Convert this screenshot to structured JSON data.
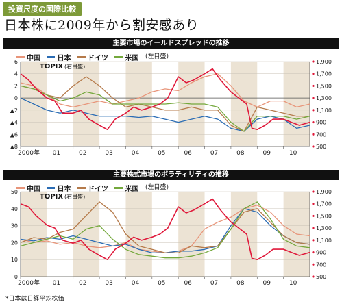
{
  "header": {
    "tag": "投資尺度の国際比較",
    "title": "日本株に2009年から割安感あり"
  },
  "footnote": "*日本は日経平均株価",
  "colors": {
    "china": "#e8957a",
    "japan": "#2a6cb4",
    "germany": "#b57a4a",
    "usa": "#74a83c",
    "topix": "#e0183a",
    "shade": "#ece3d4"
  },
  "legend": {
    "china": "中国",
    "japan": "日本",
    "germany": "ドイツ",
    "usa": "米国",
    "left_axis_note": "(左目盛)"
  },
  "chart_data": [
    {
      "type": "line",
      "title": "主要市場のイールドスプレッドの推移",
      "topix_label": "TOPIX",
      "topix_note": "(右目盛)",
      "x_tick_labels": [
        "2000年",
        "01",
        "02",
        "03",
        "04",
        "05",
        "06",
        "07",
        "08",
        "09",
        "10"
      ],
      "x_range": [
        2000,
        2011
      ],
      "left_axis": {
        "ylim": [
          -8,
          6
        ],
        "ticks": [
          6,
          4,
          2,
          0,
          -2,
          -4,
          -6,
          -8
        ],
        "tick_labels": [
          "6",
          "4",
          "2",
          "0",
          "▲2",
          "▲4",
          "▲6",
          "▲8"
        ]
      },
      "right_axis": {
        "ylim": [
          500,
          1900
        ],
        "ticks": [
          1900,
          1700,
          1500,
          1300,
          1100,
          900,
          700,
          500
        ],
        "tick_labels": [
          "1,900",
          "1,700",
          "1,500",
          "1,300",
          "1,100",
          "900",
          "700",
          "500"
        ]
      },
      "series": [
        {
          "name": "中国",
          "axis": "left",
          "x": [
            2000.0,
            2000.5,
            2001.0,
            2001.5,
            2002.0,
            2002.5,
            2003.0,
            2003.5,
            2004.0,
            2004.5,
            2005.0,
            2005.5,
            2006.0,
            2006.5,
            2007.0,
            2007.5,
            2008.0,
            2008.5,
            2009.0,
            2009.5,
            2010.0,
            2010.5,
            2011.0
          ],
          "y": [
            2.5,
            2.0,
            0.5,
            -1.0,
            -1.5,
            -1.0,
            -0.5,
            -1.0,
            -0.5,
            0.0,
            1.0,
            1.5,
            1.2,
            2.5,
            3.5,
            4.0,
            2.0,
            -0.5,
            -1.5,
            -0.5,
            -0.5,
            -1.5,
            -1.0
          ]
        },
        {
          "name": "日本",
          "axis": "left",
          "x": [
            2000.0,
            2000.5,
            2001.0,
            2001.5,
            2002.0,
            2002.5,
            2003.0,
            2003.5,
            2004.0,
            2004.5,
            2005.0,
            2005.5,
            2006.0,
            2006.5,
            2007.0,
            2007.5,
            2008.0,
            2008.5,
            2009.0,
            2009.5,
            2010.0,
            2010.5,
            2011.0
          ],
          "y": [
            0.0,
            -1.0,
            -2.0,
            -2.5,
            -2.0,
            -2.5,
            -3.0,
            -3.0,
            -3.0,
            -3.2,
            -3.0,
            -3.5,
            -4.0,
            -3.5,
            -3.0,
            -3.5,
            -5.0,
            -5.5,
            -3.5,
            -3.0,
            -3.5,
            -5.0,
            -4.5
          ]
        },
        {
          "name": "ドイツ",
          "axis": "left",
          "x": [
            2000.0,
            2000.5,
            2001.0,
            2001.5,
            2002.0,
            2002.5,
            2003.0,
            2003.5,
            2004.0,
            2004.5,
            2005.0,
            2005.5,
            2006.0,
            2006.5,
            2007.0,
            2007.5,
            2008.0,
            2008.5,
            2009.0,
            2009.5,
            2010.0,
            2010.5,
            2011.0
          ],
          "y": [
            2.0,
            1.5,
            0.5,
            0.0,
            2.0,
            3.5,
            2.0,
            0.0,
            -1.5,
            -1.0,
            -1.5,
            -2.0,
            -2.0,
            -1.5,
            -2.0,
            -2.0,
            -4.5,
            -5.5,
            -1.5,
            -2.0,
            -2.5,
            -3.0,
            -3.0
          ]
        },
        {
          "name": "米国",
          "axis": "left",
          "x": [
            2000.0,
            2000.5,
            2001.0,
            2001.5,
            2002.0,
            2002.5,
            2003.0,
            2003.5,
            2004.0,
            2004.5,
            2005.0,
            2005.5,
            2006.0,
            2006.5,
            2007.0,
            2007.5,
            2008.0,
            2008.5,
            2009.0,
            2009.5,
            2010.0,
            2010.5,
            2011.0
          ],
          "y": [
            2.0,
            1.5,
            0.5,
            -0.5,
            0.0,
            1.0,
            0.5,
            -1.0,
            -1.0,
            -1.0,
            -1.0,
            -1.0,
            -0.8,
            -1.0,
            -1.0,
            -1.5,
            -4.0,
            -5.5,
            -3.0,
            -3.0,
            -3.0,
            -3.5,
            -3.0
          ]
        },
        {
          "name": "TOPIX",
          "axis": "right",
          "x": [
            2000.0,
            2000.3,
            2000.6,
            2001.0,
            2001.3,
            2001.6,
            2002.0,
            2002.3,
            2002.6,
            2003.0,
            2003.3,
            2003.6,
            2004.0,
            2004.3,
            2004.6,
            2005.0,
            2005.3,
            2005.6,
            2006.0,
            2006.3,
            2006.6,
            2007.0,
            2007.3,
            2007.6,
            2008.0,
            2008.3,
            2008.6,
            2008.8,
            2009.0,
            2009.3,
            2009.6,
            2010.0,
            2010.3,
            2010.6,
            2011.0
          ],
          "y": [
            1700,
            1600,
            1450,
            1300,
            1250,
            1050,
            1050,
            1100,
            950,
            850,
            780,
            950,
            1050,
            1150,
            1100,
            1150,
            1200,
            1300,
            1650,
            1550,
            1600,
            1700,
            1780,
            1600,
            1400,
            1300,
            1200,
            800,
            780,
            850,
            950,
            950,
            900,
            850,
            900
          ]
        }
      ]
    },
    {
      "type": "line",
      "title": "主要株式市場のボラティリティの推移",
      "topix_label": "TOPIX",
      "topix_note": "(右目盛)",
      "x_tick_labels": [
        "2000年",
        "01",
        "02",
        "03",
        "04",
        "05",
        "06",
        "07",
        "08",
        "09",
        "10"
      ],
      "x_range": [
        2000,
        2011
      ],
      "left_axis": {
        "ylim": [
          0,
          50
        ],
        "ticks": [
          50,
          40,
          30,
          20,
          10,
          0
        ],
        "tick_labels": [
          "50",
          "40",
          "30",
          "20",
          "10",
          "0"
        ]
      },
      "right_axis": {
        "ylim": [
          500,
          1900
        ],
        "ticks": [
          1900,
          1700,
          1500,
          1300,
          1100,
          900,
          700,
          500
        ],
        "tick_labels": [
          "1,900",
          "1,700",
          "1,500",
          "1,300",
          "1,100",
          "900",
          "700",
          "500"
        ]
      },
      "series": [
        {
          "name": "中国",
          "axis": "left",
          "x": [
            2000.0,
            2000.5,
            2001.0,
            2001.5,
            2002.0,
            2002.5,
            2003.0,
            2003.5,
            2004.0,
            2004.5,
            2005.0,
            2005.5,
            2006.0,
            2006.5,
            2007.0,
            2007.5,
            2008.0,
            2008.5,
            2009.0,
            2009.5,
            2010.0,
            2010.5,
            2011.0
          ],
          "y": [
            22,
            20,
            21,
            19,
            20,
            18,
            17,
            18,
            20,
            16,
            15,
            14,
            15,
            18,
            28,
            32,
            35,
            40,
            42,
            38,
            30,
            25,
            24
          ]
        },
        {
          "name": "日本",
          "axis": "left",
          "x": [
            2000.0,
            2000.5,
            2001.0,
            2001.5,
            2002.0,
            2002.5,
            2003.0,
            2003.5,
            2004.0,
            2004.5,
            2005.0,
            2005.5,
            2006.0,
            2006.5,
            2007.0,
            2007.5,
            2008.0,
            2008.5,
            2009.0,
            2009.5,
            2010.0,
            2010.5,
            2011.0
          ],
          "y": [
            22,
            21,
            23,
            22,
            24,
            22,
            20,
            18,
            19,
            16,
            14,
            14,
            15,
            15,
            16,
            18,
            30,
            40,
            38,
            30,
            24,
            20,
            19
          ]
        },
        {
          "name": "ドイツ",
          "axis": "left",
          "x": [
            2000.0,
            2000.5,
            2001.0,
            2001.5,
            2002.0,
            2002.5,
            2003.0,
            2003.5,
            2004.0,
            2004.5,
            2005.0,
            2005.5,
            2006.0,
            2006.5,
            2007.0,
            2007.5,
            2008.0,
            2008.5,
            2009.0,
            2009.5,
            2010.0,
            2010.5,
            2011.0
          ],
          "y": [
            20,
            23,
            22,
            26,
            28,
            36,
            44,
            38,
            25,
            18,
            16,
            14,
            14,
            18,
            17,
            18,
            28,
            38,
            40,
            32,
            24,
            20,
            19
          ]
        },
        {
          "name": "米国",
          "axis": "left",
          "x": [
            2000.0,
            2000.5,
            2001.0,
            2001.5,
            2002.0,
            2002.5,
            2003.0,
            2003.5,
            2004.0,
            2004.5,
            2005.0,
            2005.5,
            2006.0,
            2006.5,
            2007.0,
            2007.5,
            2008.0,
            2008.5,
            2009.0,
            2009.5,
            2010.0,
            2010.5,
            2011.0
          ],
          "y": [
            18,
            20,
            22,
            24,
            22,
            28,
            30,
            22,
            16,
            13,
            12,
            11,
            11,
            12,
            14,
            17,
            28,
            40,
            44,
            34,
            22,
            18,
            17
          ]
        },
        {
          "name": "TOPIX",
          "axis": "right",
          "x": [
            2000.0,
            2000.3,
            2000.6,
            2001.0,
            2001.3,
            2001.6,
            2002.0,
            2002.3,
            2002.6,
            2003.0,
            2003.3,
            2003.6,
            2004.0,
            2004.3,
            2004.6,
            2005.0,
            2005.3,
            2005.6,
            2006.0,
            2006.3,
            2006.6,
            2007.0,
            2007.3,
            2007.6,
            2008.0,
            2008.3,
            2008.6,
            2008.8,
            2009.0,
            2009.3,
            2009.6,
            2010.0,
            2010.3,
            2010.6,
            2011.0
          ],
          "y": [
            1700,
            1650,
            1500,
            1350,
            1300,
            1100,
            1050,
            1100,
            950,
            850,
            780,
            950,
            1050,
            1150,
            1100,
            1150,
            1200,
            1300,
            1650,
            1550,
            1600,
            1700,
            1780,
            1600,
            1400,
            1300,
            1200,
            800,
            780,
            850,
            950,
            950,
            900,
            850,
            900
          ]
        }
      ]
    }
  ]
}
